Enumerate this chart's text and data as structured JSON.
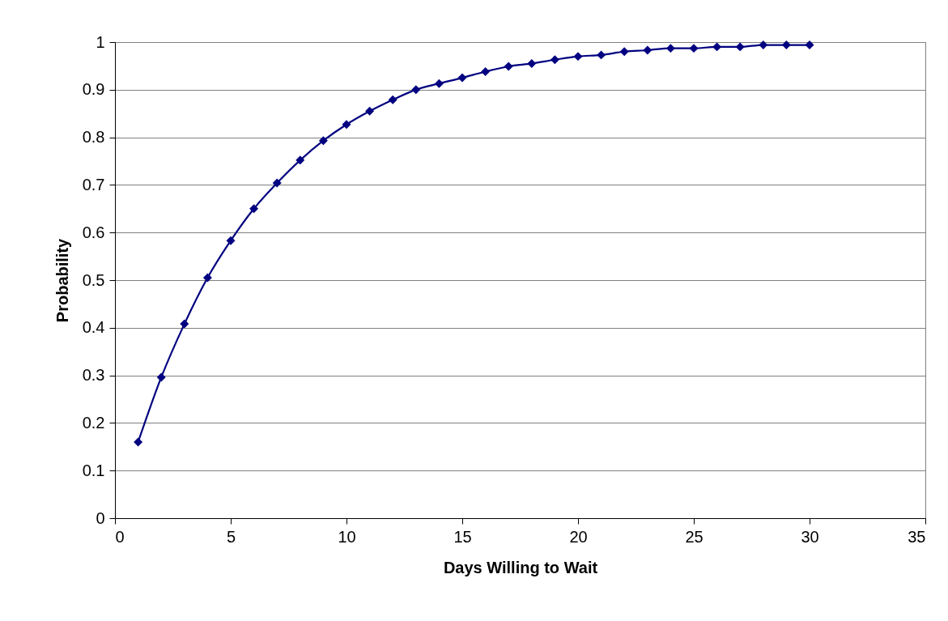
{
  "chart_data": {
    "type": "line",
    "xlabel": "Days Willing to Wait",
    "ylabel": "Probability",
    "x": [
      1,
      2,
      3,
      4,
      5,
      6,
      7,
      8,
      9,
      10,
      11,
      12,
      13,
      14,
      15,
      16,
      17,
      18,
      19,
      20,
      21,
      22,
      23,
      24,
      25,
      26,
      27,
      28,
      29,
      30
    ],
    "series": [
      {
        "color": "#000080",
        "values": [
          0.16,
          0.296,
          0.408,
          0.505,
          0.583,
          0.65,
          0.704,
          0.752,
          0.793,
          0.827,
          0.855,
          0.879,
          0.9,
          0.913,
          0.925,
          0.938,
          0.949,
          0.955,
          0.963,
          0.97,
          0.973,
          0.98,
          0.983,
          0.987,
          0.987,
          0.99,
          0.99,
          0.994,
          0.994,
          0.994
        ]
      }
    ],
    "xlim": [
      0,
      35
    ],
    "xticks": [
      0,
      5,
      10,
      15,
      20,
      25,
      30,
      35
    ],
    "ylim": [
      0,
      1
    ],
    "yticks": [
      0,
      0.1,
      0.2,
      0.3,
      0.4,
      0.5,
      0.6,
      0.7,
      0.8,
      0.9,
      1
    ],
    "grid": "y",
    "marker": "diamond",
    "line_style": "solid"
  }
}
